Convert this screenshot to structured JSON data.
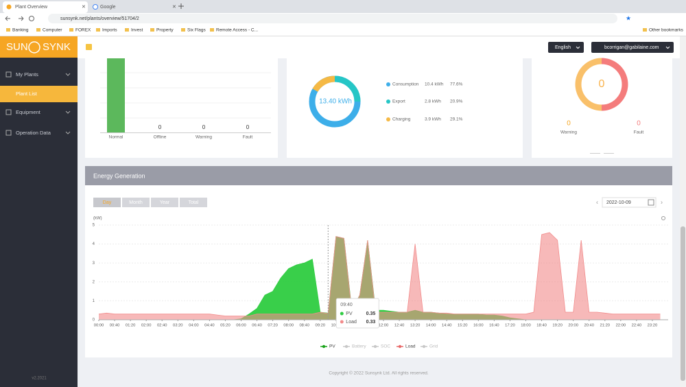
{
  "browser": {
    "tabs": [
      "Plant Overview",
      "Google"
    ],
    "url": "sunsynk.net/plants/overview/51704/2",
    "bookmarks": [
      "Banking",
      "Computer",
      "FOREX",
      "Imports",
      "Invest",
      "Property",
      "Six Flags",
      "Remote Access - C...",
      "Other bookmarks"
    ]
  },
  "sidebar": {
    "logo_left": "SUN",
    "logo_right": "SYNK",
    "menu": [
      "My Plants",
      "Plant List",
      "Equipment",
      "Operation Data"
    ],
    "version": "v2.2021"
  },
  "header": {
    "language": "English",
    "user": "bcorrigan@gabilaine.com"
  },
  "status": [
    {
      "label": "Normal"
    },
    {
      "label": "Offline",
      "count": 0
    },
    {
      "label": "Warning",
      "count": 0
    },
    {
      "label": "Fault",
      "count": 0
    }
  ],
  "energy_flow": {
    "total": "13.40 kWh",
    "items": [
      {
        "label": "Consumption",
        "amount": "10.4 kWh",
        "share": "77.6%"
      },
      {
        "label": "Export",
        "amount": "2.8 kWh",
        "share": "20.9%"
      },
      {
        "label": "Charging",
        "amount": "3.9 kWh",
        "share": "29.1%"
      }
    ]
  },
  "alarms": {
    "total": 0,
    "items": [
      {
        "label": "Warning",
        "count": 0
      },
      {
        "label": "Fault",
        "count": 0
      }
    ]
  },
  "panel_title": "Energy Generation",
  "periods": [
    "Day",
    "Month",
    "Year",
    "Total"
  ],
  "date": "2022-10-09",
  "copyright": "Copyright © 2022 Sunsynk Ltd. All rights reserved.",
  "chart_data": {
    "type": "area",
    "y_label": "(kW)",
    "x": [
      0,
      20,
      40,
      60,
      80,
      100,
      120,
      140,
      160,
      180,
      200,
      220,
      240,
      260,
      280,
      300,
      320,
      340,
      360,
      380,
      400,
      420,
      440,
      460,
      480,
      500,
      520,
      540,
      560,
      580,
      600,
      620,
      640,
      660,
      680,
      700,
      720,
      740,
      760,
      780,
      800,
      820,
      840,
      860,
      880,
      900,
      920,
      940,
      960,
      980,
      1000,
      1020,
      1040,
      1060,
      1080,
      1100,
      1120,
      1140,
      1160,
      1180,
      1200,
      1220,
      1240,
      1260,
      1280,
      1300,
      1320,
      1340,
      1360,
      1380,
      1400,
      1420
    ],
    "xlim": [
      0,
      1440
    ],
    "xticks": [
      {
        "value": 0,
        "label": "00:00"
      },
      {
        "value": 40,
        "label": "00:40"
      },
      {
        "value": 80,
        "label": "01:20"
      },
      {
        "value": 120,
        "label": "02:00"
      },
      {
        "value": 160,
        "label": "02:40"
      },
      {
        "value": 200,
        "label": "03:20"
      },
      {
        "value": 240,
        "label": "04:00"
      },
      {
        "value": 280,
        "label": "04:40"
      },
      {
        "value": 320,
        "label": "05:20"
      },
      {
        "value": 360,
        "label": "06:00"
      },
      {
        "value": 400,
        "label": "06:40"
      },
      {
        "value": 440,
        "label": "07:20"
      },
      {
        "value": 480,
        "label": "08:00"
      },
      {
        "value": 520,
        "label": "08:40"
      },
      {
        "value": 560,
        "label": "09:20"
      },
      {
        "value": 600,
        "label": "10:00"
      },
      {
        "value": 640,
        "label": "10:40"
      },
      {
        "value": 680,
        "label": "11:20"
      },
      {
        "value": 720,
        "label": "12:00"
      },
      {
        "value": 760,
        "label": "12:40"
      },
      {
        "value": 800,
        "label": "13:20"
      },
      {
        "value": 840,
        "label": "14:00"
      },
      {
        "value": 880,
        "label": "14:40"
      },
      {
        "value": 920,
        "label": "15:20"
      },
      {
        "value": 960,
        "label": "16:00"
      },
      {
        "value": 1000,
        "label": "16:40"
      },
      {
        "value": 1040,
        "label": "17:20"
      },
      {
        "value": 1080,
        "label": "18:00"
      },
      {
        "value": 1120,
        "label": "18:40"
      },
      {
        "value": 1160,
        "label": "19:20"
      },
      {
        "value": 1200,
        "label": "20:00"
      },
      {
        "value": 1240,
        "label": "20:40"
      },
      {
        "value": 1280,
        "label": "21:20"
      },
      {
        "value": 1320,
        "label": "22:00"
      },
      {
        "value": 1360,
        "label": "22:40"
      },
      {
        "value": 1400,
        "label": "23:20"
      }
    ],
    "ylim": [
      0,
      5
    ],
    "yticks": [
      0,
      1,
      2,
      3,
      4,
      5
    ],
    "grid": true,
    "series": [
      {
        "name": "PV",
        "color": "#2ecc40",
        "values": [
          0,
          0,
          0,
          0,
          0,
          0,
          0,
          0,
          0,
          0,
          0,
          0,
          0,
          0,
          0,
          0,
          0,
          0,
          0.05,
          0.3,
          0.6,
          1.3,
          1.5,
          2.2,
          2.7,
          2.9,
          3.0,
          3.2,
          0.4,
          0.35,
          4.4,
          4.3,
          0.5,
          1.3,
          4.2,
          0.5,
          0.5,
          0.45,
          0.4,
          0.4,
          0.5,
          0.4,
          0.4,
          0.35,
          0.3,
          0.3,
          0.3,
          0.3,
          0.3,
          0.25,
          0.25,
          0.2,
          0.1,
          0.05,
          0,
          0,
          0,
          0,
          0,
          0,
          0,
          0,
          0,
          0,
          0,
          0,
          0,
          0,
          0,
          0,
          0,
          0
        ]
      },
      {
        "name": "Load",
        "color": "#f28b8b",
        "values": [
          0.3,
          0.35,
          0.3,
          0.3,
          0.3,
          0.3,
          0.3,
          0.3,
          0.3,
          0.3,
          0.3,
          0.3,
          0.3,
          0.3,
          0.3,
          0.25,
          0.2,
          0.2,
          0.2,
          0.2,
          0.3,
          0.3,
          0.3,
          0.3,
          0.3,
          0.3,
          0.3,
          0.3,
          0.4,
          0.33,
          4.4,
          4.3,
          0.4,
          1.3,
          4.2,
          0.4,
          0.4,
          0.4,
          0.4,
          0.4,
          4.0,
          0.4,
          0.4,
          0.35,
          0.35,
          0.3,
          0.3,
          0.3,
          0.3,
          0.3,
          0.3,
          0.3,
          0.3,
          0.3,
          0.3,
          0.4,
          4.5,
          4.6,
          4.2,
          0.4,
          0.4,
          4.2,
          0.4,
          0.4,
          0.35,
          0.3,
          0.3,
          0.3,
          0.3,
          0.3,
          0.3,
          0.3
        ]
      }
    ],
    "legend": [
      "PV",
      "Battery",
      "SOC",
      "Load",
      "Grid"
    ],
    "tooltip_time": "09:40"
  }
}
